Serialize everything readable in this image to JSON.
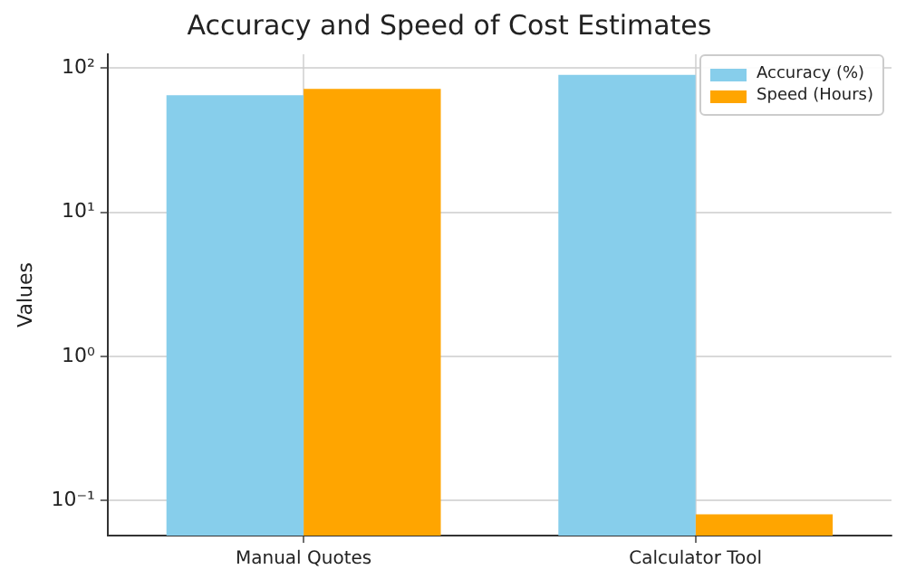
{
  "chart_data": {
    "type": "bar",
    "title": "Accuracy and Speed of Cost Estimates",
    "ylabel": "Values",
    "categories": [
      "Manual Quotes",
      "Calculator Tool"
    ],
    "series": [
      {
        "name": "Accuracy (%)",
        "color": "#87ceeb",
        "values": [
          65,
          90
        ]
      },
      {
        "name": "Speed (Hours)",
        "color": "#ffa500",
        "values": [
          72,
          0.08
        ]
      }
    ],
    "log": "y",
    "ylim": [
      0.057,
      125
    ],
    "yticks": [
      {
        "value": 0.1,
        "label": "10⁻¹"
      },
      {
        "value": 1,
        "label": "10⁰"
      },
      {
        "value": 10,
        "label": "10¹"
      },
      {
        "value": 100,
        "label": "10²"
      }
    ],
    "grid": true,
    "legend": "top right"
  }
}
